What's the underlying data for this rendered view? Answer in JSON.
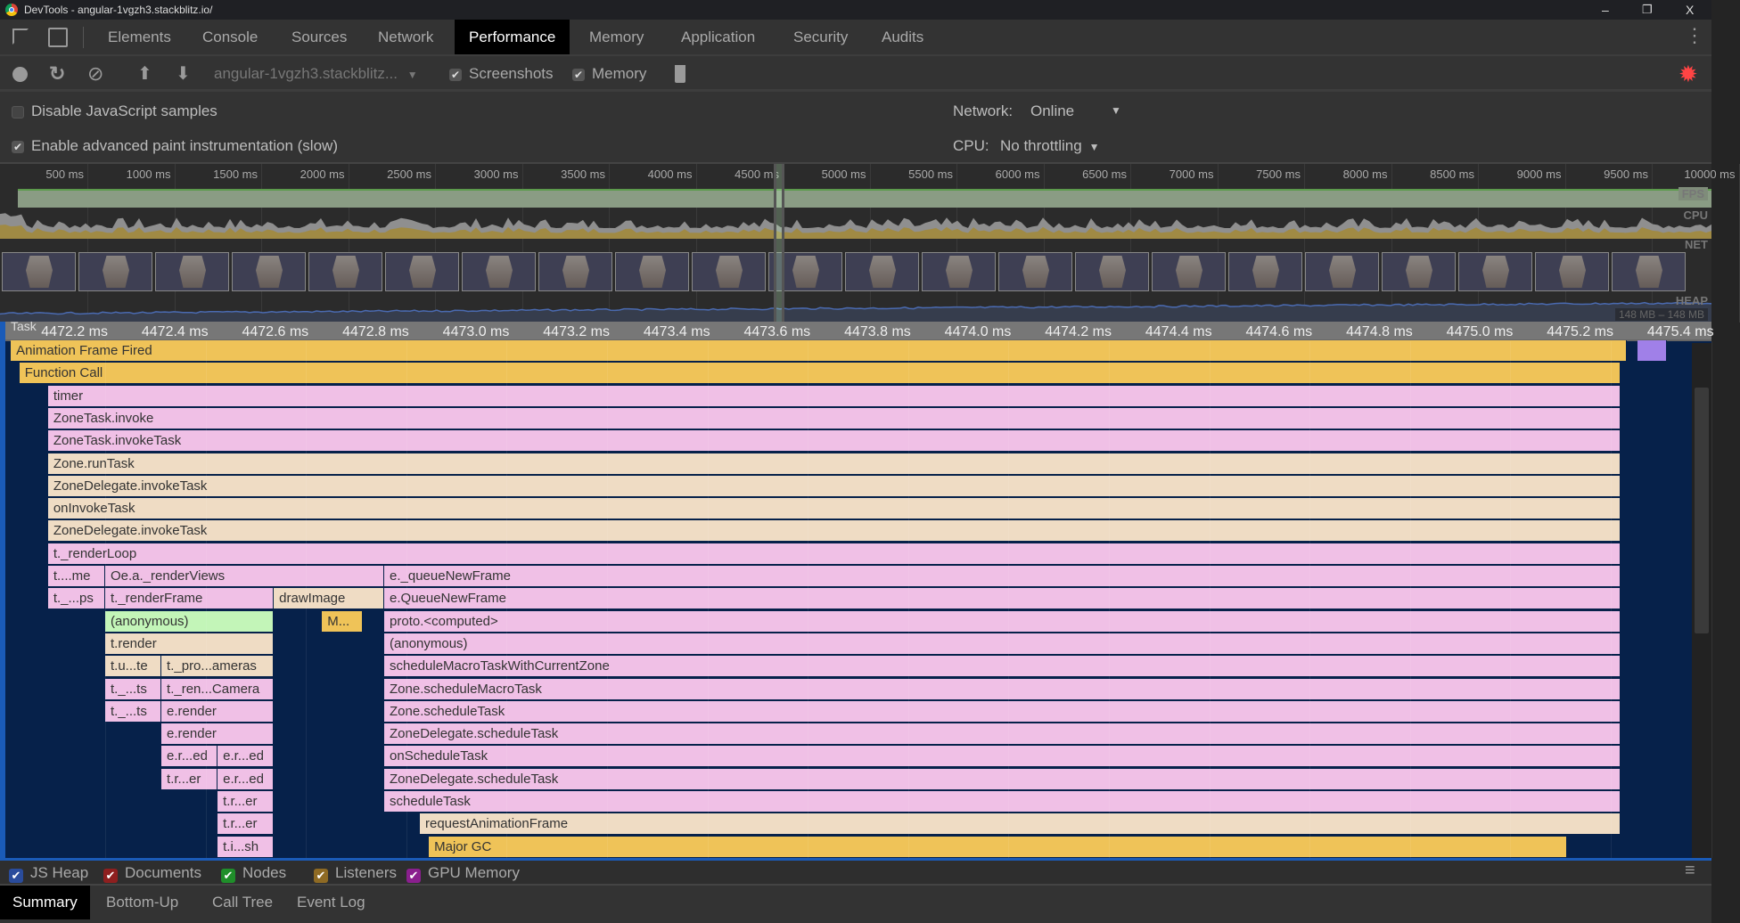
{
  "window": {
    "title": "DevTools - angular-1vgzh3.stackblitz.io/",
    "minimize": "–",
    "restore": "❐",
    "close": "X"
  },
  "tabs": [
    {
      "label": "Elements"
    },
    {
      "label": "Console"
    },
    {
      "label": "Sources"
    },
    {
      "label": "Network"
    },
    {
      "label": "Performance",
      "active": true
    },
    {
      "label": "Memory"
    },
    {
      "label": "Application"
    },
    {
      "label": "Security"
    },
    {
      "label": "Audits"
    }
  ],
  "toolbar": {
    "recording_select": "angular-1vgzh3.stackblitz...",
    "screenshots_label": "Screenshots",
    "screenshots_checked": true,
    "memory_label": "Memory",
    "memory_checked": true,
    "gear_color": "#f44"
  },
  "settings": {
    "disable_js_samples": "Disable JavaScript samples",
    "disable_js_checked": false,
    "advanced_paint": "Enable advanced paint instrumentation (slow)",
    "advanced_paint_checked": true,
    "network_label": "Network:",
    "network_value": "Online",
    "cpu_label": "CPU:",
    "cpu_value": "No throttling"
  },
  "overview": {
    "ticks": [
      "500 ms",
      "1000 ms",
      "1500 ms",
      "2000 ms",
      "2500 ms",
      "3000 ms",
      "3500 ms",
      "4000 ms",
      "4500 ms",
      "5000 ms",
      "5500 ms",
      "6000 ms",
      "6500 ms",
      "7000 ms",
      "7500 ms",
      "8000 ms",
      "8500 ms",
      "9000 ms",
      "9500 ms",
      "10000 ms"
    ],
    "tracks": {
      "fps": "FPS",
      "cpu": "CPU",
      "net": "NET",
      "heap": "HEAP"
    },
    "heap_range": "148 MB – 148 MB",
    "selection_ms": 4470,
    "screenshot_count": 22
  },
  "detail": {
    "track_label": "Task",
    "ticks": [
      "4472.2 ms",
      "4472.4 ms",
      "4472.6 ms",
      "4472.8 ms",
      "4473.0 ms",
      "4473.2 ms",
      "4473.4 ms",
      "4473.6 ms",
      "4473.8 ms",
      "4474.0 ms",
      "4474.2 ms",
      "4474.4 ms",
      "4474.6 ms",
      "4474.8 ms",
      "4475.0 ms",
      "4475.2 ms",
      "4475.4 ms"
    ],
    "colors": {
      "pink": "#f0c0e6",
      "tan": "#efdcc4",
      "gold": "#efc358",
      "green": "#c3f5b8",
      "violet": "#a080e8"
    },
    "rows": [
      [
        [
          4472.012,
          4475.232,
          "Animation Frame Fired",
          "gold"
        ],
        [
          4475.253,
          4475.312,
          "",
          "violet"
        ]
      ],
      [
        [
          4472.029,
          4475.22,
          "Function Call",
          "gold"
        ]
      ],
      [
        [
          4472.086,
          4475.22,
          "timer",
          "pink"
        ]
      ],
      [
        [
          4472.086,
          4475.22,
          "ZoneTask.invoke",
          "pink"
        ]
      ],
      [
        [
          4472.086,
          4475.22,
          "ZoneTask.invokeTask",
          "pink"
        ]
      ],
      [
        [
          4472.086,
          4475.22,
          "Zone.runTask",
          "tan"
        ]
      ],
      [
        [
          4472.086,
          4475.22,
          "ZoneDelegate.invokeTask",
          "tan"
        ]
      ],
      [
        [
          4472.086,
          4475.22,
          "onInvokeTask",
          "tan"
        ]
      ],
      [
        [
          4472.086,
          4475.22,
          "ZoneDelegate.invokeTask",
          "tan"
        ]
      ],
      [
        [
          4472.086,
          4475.22,
          "t._renderLoop",
          "pink"
        ]
      ],
      [
        [
          4472.086,
          4472.2,
          "t....me",
          "pink"
        ],
        [
          4472.2,
          4472.756,
          "Oe.a._renderViews",
          "pink"
        ],
        [
          4472.756,
          4475.22,
          "e._queueNewFrame",
          "pink"
        ]
      ],
      [
        [
          4472.086,
          4472.2,
          "t._...ps",
          "pink"
        ],
        [
          4472.2,
          4472.536,
          "t._renderFrame",
          "pink"
        ],
        [
          4472.536,
          4472.756,
          "drawImage",
          "tan"
        ],
        [
          4472.756,
          4475.22,
          "e.QueueNewFrame",
          "pink"
        ]
      ],
      [
        [
          4472.2,
          4472.536,
          "(anonymous)",
          "green"
        ],
        [
          4472.632,
          4472.713,
          "M...",
          "gold"
        ],
        [
          4472.756,
          4475.22,
          "proto.<computed>",
          "pink"
        ]
      ],
      [
        [
          4472.2,
          4472.536,
          "t.render",
          "tan"
        ],
        [
          4472.756,
          4475.22,
          "(anonymous)",
          "pink"
        ]
      ],
      [
        [
          4472.2,
          4472.312,
          "t.u...te",
          "tan"
        ],
        [
          4472.312,
          4472.536,
          "t._pro...ameras",
          "tan"
        ],
        [
          4472.756,
          4475.22,
          "scheduleMacroTaskWithCurrentZone",
          "pink"
        ]
      ],
      [
        [
          4472.2,
          4472.312,
          "t._...ts",
          "pink"
        ],
        [
          4472.312,
          4472.536,
          "t._ren...Camera",
          "pink"
        ],
        [
          4472.756,
          4475.22,
          "Zone.scheduleMacroTask",
          "pink"
        ]
      ],
      [
        [
          4472.2,
          4472.312,
          "t._...ts",
          "pink"
        ],
        [
          4472.312,
          4472.536,
          "e.render",
          "pink"
        ],
        [
          4472.756,
          4475.22,
          "Zone.scheduleTask",
          "pink"
        ]
      ],
      [
        [
          4472.312,
          4472.536,
          "e.render",
          "pink"
        ],
        [
          4472.756,
          4475.22,
          "ZoneDelegate.scheduleTask",
          "pink"
        ]
      ],
      [
        [
          4472.312,
          4472.424,
          "e.r...ed",
          "pink"
        ],
        [
          4472.424,
          4472.536,
          "e.r...ed",
          "pink"
        ],
        [
          4472.756,
          4475.22,
          "onScheduleTask",
          "pink"
        ]
      ],
      [
        [
          4472.312,
          4472.424,
          "t.r...er",
          "pink"
        ],
        [
          4472.424,
          4472.536,
          "e.r...ed",
          "pink"
        ],
        [
          4472.756,
          4475.22,
          "ZoneDelegate.scheduleTask",
          "pink"
        ]
      ],
      [
        [
          4472.424,
          4472.536,
          "t.r...er",
          "pink"
        ],
        [
          4472.756,
          4475.22,
          "scheduleTask",
          "pink"
        ]
      ],
      [
        [
          4472.424,
          4472.536,
          "t.r...er",
          "pink"
        ],
        [
          4472.827,
          4475.22,
          "requestAnimationFrame",
          "tan"
        ]
      ],
      [
        [
          4472.424,
          4472.536,
          "t.i...sh",
          "pink"
        ],
        [
          4472.845,
          4475.113,
          "Major GC",
          "gold"
        ]
      ]
    ]
  },
  "legend": [
    {
      "label": "JS Heap",
      "color": "#2a4c9c"
    },
    {
      "label": "Documents",
      "color": "#8e1f1f"
    },
    {
      "label": "Nodes",
      "color": "#1f8e2a"
    },
    {
      "label": "Listeners",
      "color": "#8e6a24"
    },
    {
      "label": "GPU Memory",
      "color": "#8a1f8e"
    }
  ],
  "bottom_tabs": [
    {
      "label": "Summary",
      "active": true
    },
    {
      "label": "Bottom-Up"
    },
    {
      "label": "Call Tree"
    },
    {
      "label": "Event Log"
    }
  ]
}
